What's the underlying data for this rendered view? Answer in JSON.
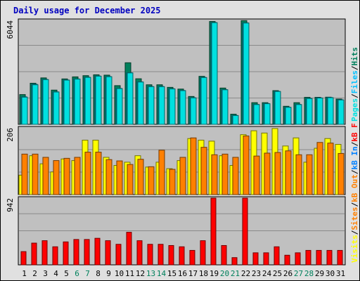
{
  "title": "Daily usage for December 2025",
  "colors": {
    "hits": "#00805c",
    "files": "#00c0ff",
    "pages": "#00e0e0",
    "sites": "#ff8000",
    "visits": "#ffff00",
    "kbytes": "#ff0000",
    "separator": "#000000",
    "panel_bg": "#c0c0c0",
    "frame_bg": "#e0e0e0",
    "weekend_label": "#00805c",
    "weekday_label": "#000000",
    "title": "#0000c0",
    "kb_out": "#ff8000",
    "kb_in": "#0080ff"
  },
  "panels": {
    "top": {
      "ymax_label": "6044",
      "labels": [
        {
          "text": "Pages",
          "color": "pages"
        },
        {
          "text": "/",
          "color": "separator"
        },
        {
          "text": "Files",
          "color": "files"
        },
        {
          "text": "/",
          "color": "separator"
        },
        {
          "text": "Hits",
          "color": "hits"
        }
      ]
    },
    "middle": {
      "ymax_label": "206",
      "labels": [
        {
          "text": "Visits",
          "color": "visits"
        },
        {
          "text": "/",
          "color": "separator"
        },
        {
          "text": "Sites",
          "color": "sites"
        },
        {
          "text": "/",
          "color": "separator"
        },
        {
          "text": "kB Out",
          "color": "kb_out"
        },
        {
          "text": "/",
          "color": "separator"
        },
        {
          "text": "kB In",
          "color": "kb_in"
        },
        {
          "text": "/",
          "color": "separator"
        },
        {
          "text": "kB F",
          "color": "kbytes"
        }
      ]
    },
    "bottom": {
      "ymax_label": "942"
    }
  },
  "chart_data": {
    "type": "bar",
    "categories": [
      "1",
      "2",
      "3",
      "4",
      "5",
      "6",
      "7",
      "8",
      "9",
      "10",
      "11",
      "12",
      "13",
      "14",
      "15",
      "16",
      "17",
      "18",
      "19",
      "20",
      "21",
      "22",
      "23",
      "24",
      "25",
      "26",
      "27",
      "28",
      "29",
      "30",
      "31"
    ],
    "weekend_days": [
      6,
      7,
      13,
      14,
      20,
      21,
      27,
      28
    ],
    "ylim": {
      "usage": [
        0,
        6044
      ],
      "visits": [
        0,
        206
      ],
      "kbytes": [
        0,
        942
      ]
    },
    "series": [
      {
        "name": "Hits",
        "panel": "top",
        "values": [
          1730,
          2390,
          2700,
          1990,
          2640,
          2760,
          2830,
          2880,
          2860,
          2250,
          3580,
          2650,
          2300,
          2300,
          2150,
          2050,
          1620,
          2790,
          5980,
          2110,
          590,
          6030,
          1260,
          1260,
          1960,
          1050,
          1260,
          1570,
          1570,
          1580,
          1470
        ]
      },
      {
        "name": "Files",
        "panel": "top",
        "values": [
          1600,
          2330,
          2610,
          1890,
          2580,
          2640,
          2740,
          2810,
          2780,
          2090,
          3000,
          2470,
          2200,
          2200,
          2070,
          1970,
          1550,
          2730,
          5920,
          2020,
          520,
          5900,
          1160,
          1210,
          1920,
          1000,
          1160,
          1510,
          1540,
          1560,
          1430
        ]
      },
      {
        "name": "Pages",
        "panel": "top",
        "values": [
          1580,
          2300,
          2600,
          1880,
          2570,
          2630,
          2730,
          2800,
          2770,
          2080,
          2990,
          2460,
          2190,
          2190,
          2060,
          1960,
          1540,
          2720,
          5910,
          2010,
          510,
          5890,
          1150,
          1200,
          1910,
          990,
          1150,
          1500,
          1530,
          1550,
          1420
        ]
      },
      {
        "name": "Visits",
        "panel": "middle",
        "values": [
          60,
          120,
          95,
          70,
          110,
          105,
          168,
          168,
          115,
          90,
          100,
          120,
          85,
          100,
          80,
          105,
          173,
          168,
          165,
          120,
          90,
          185,
          197,
          190,
          204,
          150,
          175,
          100,
          143,
          173,
          155
        ]
      },
      {
        "name": "Sites",
        "panel": "middle",
        "values": [
          125,
          125,
          115,
          105,
          112,
          115,
          131,
          131,
          108,
          104,
          93,
          109,
          86,
          137,
          78,
          115,
          175,
          146,
          123,
          125,
          115,
          181,
          119,
          128,
          130,
          135,
          123,
          123,
          161,
          159,
          127
        ]
      },
      {
        "name": "kB F",
        "panel": "bottom",
        "values": [
          187,
          307,
          341,
          255,
          324,
          358,
          358,
          375,
          341,
          290,
          460,
          341,
          290,
          290,
          273,
          255,
          204,
          341,
          942,
          273,
          102,
          942,
          170,
          170,
          255,
          136,
          170,
          204,
          204,
          204,
          204
        ]
      }
    ]
  }
}
